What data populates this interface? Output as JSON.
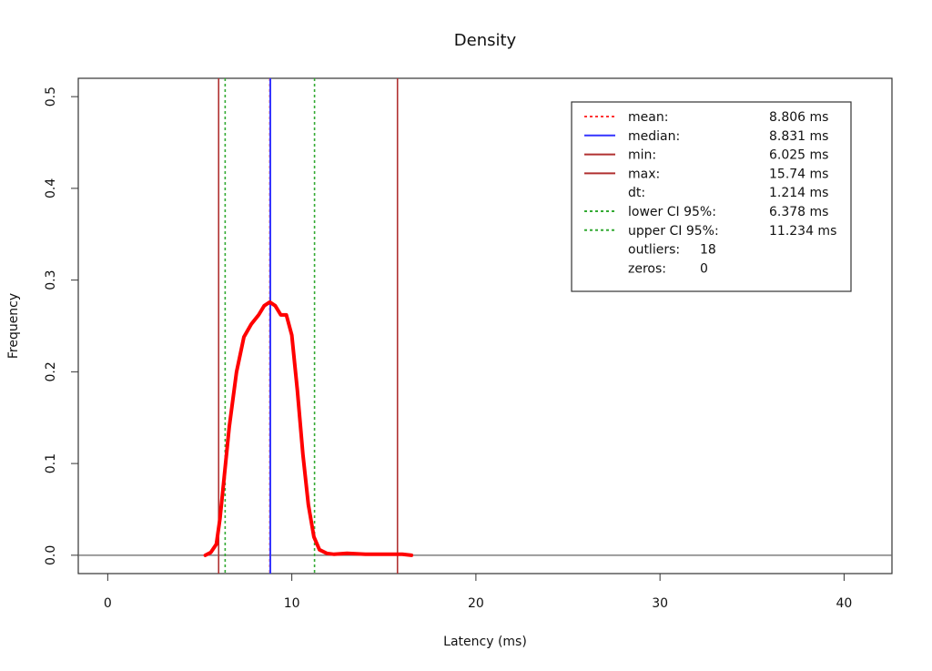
{
  "chart_data": {
    "type": "line",
    "title": "Density",
    "xlabel": "Latency (ms)",
    "ylabel": "Frequency",
    "xlim": [
      -1.6,
      42.6
    ],
    "ylim": [
      -0.02,
      0.52
    ],
    "xticks": [
      0,
      10,
      20,
      30,
      40
    ],
    "yticks": [
      0.0,
      0.1,
      0.2,
      0.3,
      0.4,
      0.5
    ],
    "ytick_labels": [
      "0.0",
      "0.1",
      "0.2",
      "0.3",
      "0.4",
      "0.5"
    ],
    "grid": false,
    "legend_position": "top-right",
    "colors": {
      "density": "#ff0000",
      "mean": "#ff3333",
      "median": "#3333ff",
      "minmax": "#b03030",
      "ci": "#33aa33",
      "zero_line": "#666666"
    },
    "series": [
      {
        "x": [
          5.3,
          5.6,
          5.9,
          6.1,
          6.3,
          6.6,
          7.0,
          7.4,
          7.8,
          8.2,
          8.5,
          8.8,
          9.1,
          9.4,
          9.7,
          10.0,
          10.3,
          10.6,
          10.9,
          11.2,
          11.5,
          11.9,
          12.3,
          13.0,
          14.0,
          15.0,
          16.0,
          16.5
        ],
        "y": [
          0.0,
          0.003,
          0.012,
          0.04,
          0.08,
          0.14,
          0.2,
          0.238,
          0.252,
          0.262,
          0.272,
          0.276,
          0.272,
          0.262,
          0.262,
          0.24,
          0.18,
          0.11,
          0.055,
          0.02,
          0.006,
          0.002,
          0.001,
          0.002,
          0.001,
          0.001,
          0.001,
          0.0
        ]
      }
    ],
    "vlines": [
      {
        "name": "mean",
        "x": 8.806,
        "style": "dotted",
        "color_key": "mean"
      },
      {
        "name": "median",
        "x": 8.831,
        "style": "solid",
        "color_key": "median"
      },
      {
        "name": "min",
        "x": 6.025,
        "style": "solid",
        "color_key": "minmax"
      },
      {
        "name": "max",
        "x": 15.74,
        "style": "solid",
        "color_key": "minmax"
      },
      {
        "name": "lower CI 95%",
        "x": 6.378,
        "style": "dotted",
        "color_key": "ci"
      },
      {
        "name": "upper CI 95%",
        "x": 11.234,
        "style": "dotted",
        "color_key": "ci"
      }
    ],
    "legend": [
      {
        "label": "mean:",
        "value": "8.806 ms",
        "color_key": "mean",
        "style": "dotted"
      },
      {
        "label": "median:",
        "value": "8.831 ms",
        "color_key": "median",
        "style": "solid"
      },
      {
        "label": "min:",
        "value": "6.025 ms",
        "color_key": "minmax",
        "style": "solid"
      },
      {
        "label": "max:",
        "value": "15.74 ms",
        "color_key": "minmax",
        "style": "solid"
      },
      {
        "label": "dt:",
        "value": "1.214 ms",
        "color_key": "",
        "style": "none"
      },
      {
        "label": "lower CI 95%:",
        "value": "6.378 ms",
        "color_key": "ci",
        "style": "dotted"
      },
      {
        "label": "upper CI 95%:",
        "value": "11.234 ms",
        "color_key": "ci",
        "style": "dotted"
      },
      {
        "label": "outliers:",
        "value": "18",
        "color_key": "",
        "style": "none"
      },
      {
        "label": "zeros:",
        "value": "0",
        "color_key": "",
        "style": "none"
      }
    ]
  }
}
